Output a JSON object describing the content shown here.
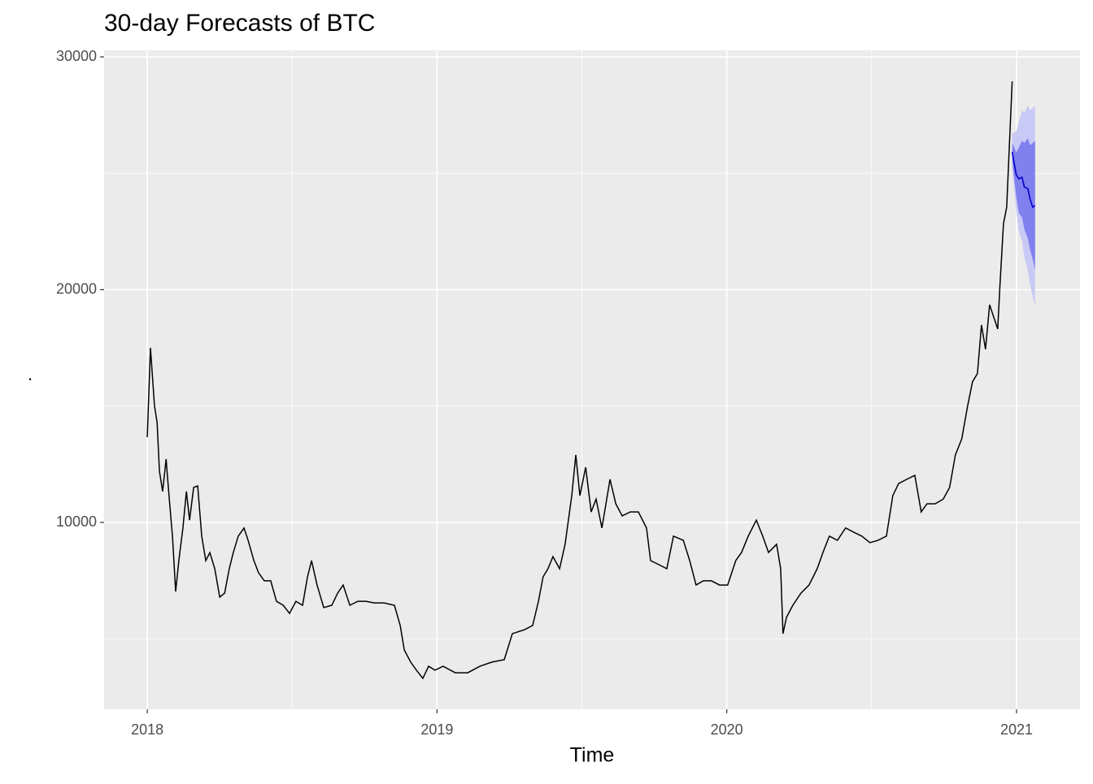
{
  "chart_data": {
    "type": "forecast-line",
    "title": "30-day Forecasts of BTC",
    "x_label": "Time",
    "y_label": ".",
    "xlim": [
      2017.851,
      2021.219
    ],
    "ylim": [
      1972,
      30280
    ],
    "xticks": [
      2018,
      2019,
      2020,
      2021
    ],
    "yticks": [
      10000,
      20000,
      30000
    ],
    "xminor": [
      2018.5,
      2019.5,
      2020.5
    ],
    "yminor": [
      5000,
      15000,
      25000
    ],
    "grid": true,
    "color": "#000000",
    "x": [
      2018.0,
      2018.011,
      2018.025,
      2018.034,
      2018.042,
      2018.053,
      2018.065,
      2018.076,
      2018.087,
      2018.098,
      2018.109,
      2018.123,
      2018.135,
      2018.146,
      2018.16,
      2018.174,
      2018.188,
      2018.202,
      2018.216,
      2018.233,
      2018.25,
      2018.267,
      2018.283,
      2018.297,
      2018.314,
      2018.334,
      2018.348,
      2018.368,
      2018.384,
      2018.404,
      2018.426,
      2018.446,
      2018.469,
      2018.491,
      2018.513,
      2018.536,
      2018.553,
      2018.567,
      2018.586,
      2018.609,
      2018.637,
      2018.657,
      2018.676,
      2018.699,
      2018.727,
      2018.755,
      2018.783,
      2018.817,
      2018.853,
      2018.873,
      2018.887,
      2018.909,
      2018.929,
      2018.951,
      2018.971,
      2018.993,
      2019.021,
      2019.063,
      2019.106,
      2019.148,
      2019.19,
      2019.232,
      2019.26,
      2019.302,
      2019.33,
      2019.35,
      2019.366,
      2019.383,
      2019.4,
      2019.423,
      2019.442,
      2019.465,
      2019.479,
      2019.493,
      2019.513,
      2019.532,
      2019.549,
      2019.569,
      2019.583,
      2019.597,
      2019.617,
      2019.639,
      2019.667,
      2019.695,
      2019.723,
      2019.737,
      2019.765,
      2019.793,
      2019.816,
      2019.85,
      2019.872,
      2019.894,
      2019.919,
      2019.947,
      2019.975,
      2020.003,
      2020.031,
      2020.051,
      2020.074,
      2020.102,
      2020.124,
      2020.144,
      2020.172,
      2020.186,
      2020.194,
      2020.206,
      2020.228,
      2020.256,
      2020.284,
      2020.312,
      2020.332,
      2020.354,
      2020.382,
      2020.41,
      2020.438,
      2020.466,
      2020.494,
      2020.522,
      2020.551,
      2020.573,
      2020.593,
      2020.621,
      2020.649,
      2020.671,
      2020.691,
      2020.719,
      2020.747,
      2020.769,
      2020.789,
      2020.811,
      2020.831,
      2020.848,
      2020.865,
      2020.879,
      2020.893,
      2020.907,
      2020.921,
      2020.935,
      2020.943,
      2020.955,
      2020.966,
      2020.977,
      2020.985
    ],
    "values": [
      13660,
      17500,
      15000,
      14290,
      12200,
      11330,
      12720,
      11000,
      9400,
      7030,
      8360,
      9760,
      11330,
      10100,
      11500,
      11570,
      9400,
      8360,
      8700,
      8010,
      6790,
      6960,
      8010,
      8710,
      9410,
      9760,
      9230,
      8360,
      7840,
      7490,
      7490,
      6610,
      6440,
      6090,
      6610,
      6440,
      7660,
      8360,
      7310,
      6340,
      6440,
      6960,
      7310,
      6440,
      6610,
      6610,
      6540,
      6540,
      6440,
      5570,
      4520,
      4000,
      3650,
      3300,
      3820,
      3650,
      3820,
      3540,
      3540,
      3820,
      4000,
      4100,
      5220,
      5390,
      5570,
      6610,
      7660,
      8010,
      8530,
      8010,
      9060,
      11150,
      12900,
      11150,
      12370,
      10450,
      11000,
      9760,
      10800,
      11850,
      10800,
      10280,
      10450,
      10450,
      9760,
      8360,
      8190,
      8010,
      9410,
      9230,
      8360,
      7310,
      7490,
      7490,
      7310,
      7310,
      8360,
      8710,
      9410,
      10100,
      9410,
      8710,
      9060,
      8010,
      5220,
      5920,
      6440,
      6960,
      7310,
      8010,
      8710,
      9410,
      9230,
      9760,
      9580,
      9410,
      9130,
      9230,
      9410,
      11150,
      11670,
      11850,
      12020,
      10450,
      10800,
      10800,
      11000,
      11500,
      12900,
      13590,
      14990,
      16040,
      16390,
      18480,
      17440,
      19350,
      18830,
      18310,
      20230,
      22840,
      23540,
      26680,
      28950
    ],
    "forecast": {
      "x": [
        2020.985,
        2020.999,
        2021.008,
        2021.019,
        2021.027,
        2021.039,
        2021.047,
        2021.056,
        2021.064
      ],
      "mean": [
        25920,
        24940,
        24760,
        24830,
        24410,
        24340,
        23880,
        23540,
        23610
      ],
      "lo80": [
        25500,
        24000,
        23300,
        23100,
        22600,
        22200,
        21700,
        21300,
        20850
      ],
      "hi80": [
        26300,
        25900,
        26100,
        26400,
        26300,
        26500,
        26200,
        26300,
        26400
      ],
      "lo95": [
        25200,
        23400,
        22500,
        22100,
        21400,
        20800,
        20200,
        19700,
        19280
      ],
      "hi95": [
        26700,
        26800,
        27200,
        27700,
        27600,
        27900,
        27700,
        27800,
        27900
      ],
      "mean_color": "#0000cd",
      "band80_color": "#8080ee",
      "band95_color": "#c9c9f6"
    }
  }
}
